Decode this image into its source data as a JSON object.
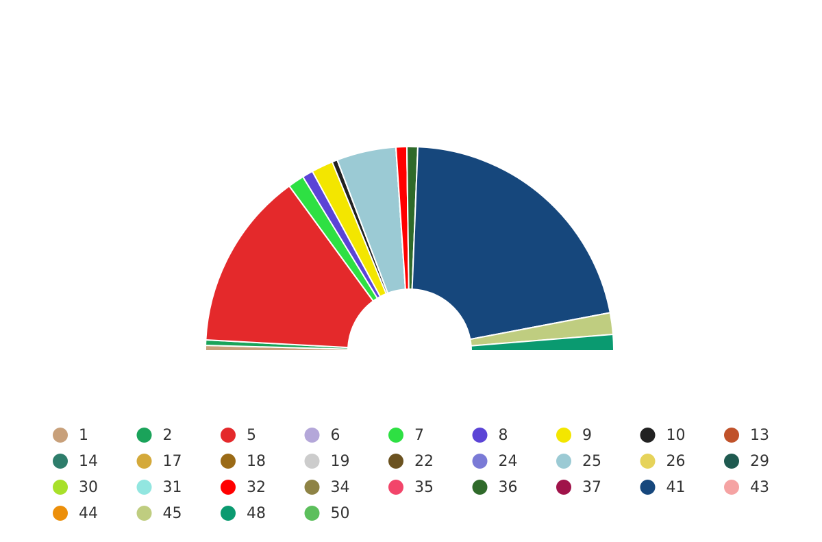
{
  "chart_data": {
    "type": "semi-donut",
    "series": [
      {
        "name": "1",
        "color": "#c8a07a",
        "values": [
          1
        ]
      },
      {
        "name": "2",
        "color": "#1aa35a",
        "values": [
          1
        ]
      },
      {
        "name": "5",
        "color": "#e4292b",
        "values": [
          33
        ]
      },
      {
        "name": "6",
        "color": "#b4a7d9",
        "values": [
          0
        ]
      },
      {
        "name": "7",
        "color": "#2ee043",
        "values": [
          3
        ]
      },
      {
        "name": "8",
        "color": "#5b44d6",
        "values": [
          2
        ]
      },
      {
        "name": "9",
        "color": "#f3e600",
        "values": [
          4
        ]
      },
      {
        "name": "10",
        "color": "#222222",
        "values": [
          1
        ]
      },
      {
        "name": "13",
        "color": "#c0522a",
        "values": [
          0
        ]
      },
      {
        "name": "14",
        "color": "#2e7d6b",
        "values": [
          0
        ]
      },
      {
        "name": "17",
        "color": "#d4a93a",
        "values": [
          0
        ]
      },
      {
        "name": "18",
        "color": "#9a6a16",
        "values": [
          0
        ]
      },
      {
        "name": "19",
        "color": "#cccccc",
        "values": [
          0
        ]
      },
      {
        "name": "22",
        "color": "#6b5220",
        "values": [
          0
        ]
      },
      {
        "name": "24",
        "color": "#7a7ad6",
        "values": [
          0
        ]
      },
      {
        "name": "25",
        "color": "#9bcad4",
        "values": [
          11
        ]
      },
      {
        "name": "26",
        "color": "#e6d35a",
        "values": [
          0
        ]
      },
      {
        "name": "29",
        "color": "#1f5a50",
        "values": [
          0
        ]
      },
      {
        "name": "30",
        "color": "#a8e02a",
        "values": [
          0
        ]
      },
      {
        "name": "31",
        "color": "#92e6e0",
        "values": [
          0
        ]
      },
      {
        "name": "32",
        "color": "#ff0000",
        "values": [
          2
        ]
      },
      {
        "name": "34",
        "color": "#8e8345",
        "values": [
          0
        ]
      },
      {
        "name": "35",
        "color": "#f2456a",
        "values": [
          0
        ]
      },
      {
        "name": "36",
        "color": "#2f6a2a",
        "values": [
          2
        ]
      },
      {
        "name": "37",
        "color": "#a0134a",
        "values": [
          0
        ]
      },
      {
        "name": "41",
        "color": "#16477c",
        "values": [
          50
        ]
      },
      {
        "name": "43",
        "color": "#f5a3a3",
        "values": [
          0
        ]
      },
      {
        "name": "44",
        "color": "#ec8f0a",
        "values": [
          0
        ]
      },
      {
        "name": "45",
        "color": "#bfcd80",
        "values": [
          4
        ]
      },
      {
        "name": "48",
        "color": "#0a9a70",
        "values": [
          3
        ]
      },
      {
        "name": "50",
        "color": "#5cbf5c",
        "values": [
          0
        ]
      }
    ]
  }
}
